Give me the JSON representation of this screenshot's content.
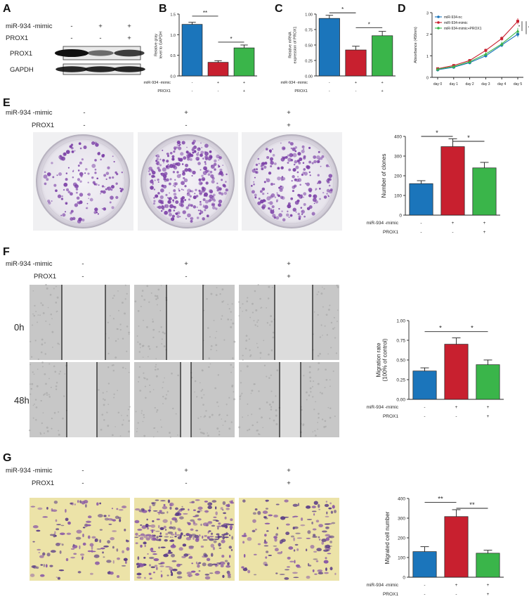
{
  "colors": {
    "blue": "#1b75bb",
    "red": "#c8202f",
    "green": "#3ab54a",
    "dish": "#7a3ea6",
    "bg": "#ffffff"
  },
  "panels": {
    "A": {
      "letter": "A",
      "cond_rows": [
        {
          "label": "miR-934 -mimic",
          "marks": [
            "-",
            "+",
            "+"
          ]
        },
        {
          "label": "PROX1",
          "marks": [
            "-",
            "-",
            "+"
          ]
        }
      ],
      "blots": [
        {
          "label": "PROX1",
          "intensity": [
            1.0,
            0.35,
            0.7
          ]
        },
        {
          "label": "GAPDH",
          "intensity": [
            0.85,
            0.85,
            0.85
          ]
        }
      ]
    },
    "B": {
      "letter": "B",
      "ylabel": "Relative gray\nlevel to GAPDH"
    },
    "C": {
      "letter": "C",
      "ylabel": "Relative mRNA\nexpression of PROX1"
    },
    "D": {
      "letter": "D",
      "ylabel": "Absorbance (450nm)"
    },
    "E": {
      "letter": "E",
      "cond_rows": [
        {
          "label": "miR-934 -mimic",
          "marks": [
            "-",
            "+",
            "+"
          ]
        },
        {
          "label": "PROX1",
          "marks": [
            "-",
            "-",
            "+"
          ]
        }
      ]
    },
    "F": {
      "letter": "F",
      "cond_rows": [
        {
          "label": "miR-934 -mimic",
          "marks": [
            "-",
            "+",
            "+"
          ]
        },
        {
          "label": "PROX1",
          "marks": [
            "-",
            "-",
            "+"
          ]
        }
      ],
      "row_labels": [
        "0h",
        "48h"
      ]
    },
    "G": {
      "letter": "G",
      "cond_rows": [
        {
          "label": "miR-934 -mimic",
          "marks": [
            "-",
            "+",
            "+"
          ]
        },
        {
          "label": "PROX1",
          "marks": [
            "-",
            "-",
            "+"
          ]
        }
      ]
    }
  },
  "chart_data": [
    {
      "id": "B",
      "type": "bar",
      "ylabel": "Relative gray level to GAPDH",
      "ylim": [
        0,
        1.5
      ],
      "yticks": [
        0.0,
        0.5,
        1.0,
        1.5
      ],
      "ytick_labels": [
        "0.0",
        "0.5",
        "1.0",
        "1.5"
      ],
      "values": [
        1.25,
        0.33,
        0.68
      ],
      "errors": [
        0.05,
        0.04,
        0.07
      ],
      "colors": [
        "#1b75bb",
        "#c8202f",
        "#3ab54a"
      ],
      "cond_rows": [
        {
          "label": "miR-934 -mimic",
          "marks": [
            "-",
            "+",
            "+"
          ]
        },
        {
          "label": "PROX1",
          "marks": [
            "-",
            "-",
            "+"
          ]
        }
      ],
      "sig": [
        {
          "from": 0,
          "to": 1,
          "label": "**",
          "y": 1.45
        },
        {
          "from": 1,
          "to": 2,
          "label": "*",
          "y": 0.82
        }
      ]
    },
    {
      "id": "C",
      "type": "bar",
      "ylabel": "Relative mRNA expression of PROX1",
      "ylim": [
        0,
        1.0
      ],
      "yticks": [
        0.0,
        0.25,
        0.5,
        0.75,
        1.0
      ],
      "ytick_labels": [
        "0.00",
        "0.25",
        "0.50",
        "0.75",
        "1.00"
      ],
      "values": [
        0.93,
        0.42,
        0.65
      ],
      "errors": [
        0.05,
        0.06,
        0.07
      ],
      "colors": [
        "#1b75bb",
        "#c8202f",
        "#3ab54a"
      ],
      "cond_rows": [
        {
          "label": "miR-934 -mimic",
          "marks": [
            "-",
            "+",
            "+"
          ]
        },
        {
          "label": "PROX1",
          "marks": [
            "-",
            "-",
            "+"
          ]
        }
      ],
      "sig": [
        {
          "from": 0,
          "to": 1,
          "label": "*",
          "y": 1.02
        },
        {
          "from": 1,
          "to": 2,
          "label": "*",
          "y": 0.78
        }
      ]
    },
    {
      "id": "D",
      "type": "line",
      "ylabel": "Absorbance (450nm)",
      "x": [
        "day 0",
        "day 1",
        "day 2",
        "day 3",
        "day 4",
        "day 5"
      ],
      "ylim": [
        0,
        3
      ],
      "yticks": [
        0,
        1,
        2,
        3
      ],
      "ytick_labels": [
        "0",
        "1",
        "2",
        "3"
      ],
      "legend_position": "top-left",
      "series": [
        {
          "name": "miR-934-nc",
          "color": "#1b75bb",
          "marker": "circle",
          "values": [
            0.35,
            0.47,
            0.68,
            1.0,
            1.5,
            2.0
          ]
        },
        {
          "name": "miR-934-mimic",
          "color": "#c8202f",
          "marker": "square",
          "values": [
            0.4,
            0.55,
            0.78,
            1.25,
            1.8,
            2.6
          ]
        },
        {
          "name": "miR-934-mimic+PROX1",
          "color": "#3ab54a",
          "marker": "triangle",
          "values": [
            0.38,
            0.5,
            0.72,
            1.08,
            1.55,
            2.15
          ]
        }
      ],
      "errors": [
        0.05,
        0.05,
        0.06,
        0.08,
        0.1,
        0.14
      ],
      "sig": [
        "*",
        "*"
      ]
    },
    {
      "id": "E",
      "type": "bar",
      "ylabel": "Number of clones",
      "ylim": [
        0,
        400
      ],
      "yticks": [
        0,
        100,
        200,
        300,
        400
      ],
      "ytick_labels": [
        "0",
        "100",
        "200",
        "300",
        "400"
      ],
      "values": [
        160,
        348,
        240
      ],
      "errors": [
        15,
        40,
        28
      ],
      "colors": [
        "#1b75bb",
        "#c8202f",
        "#3ab54a"
      ],
      "cond_rows": [
        {
          "label": "miR-934 -mimic",
          "marks": [
            "-",
            "+",
            "+"
          ]
        },
        {
          "label": "PROX1",
          "marks": [
            "-",
            "-",
            "+"
          ]
        }
      ],
      "sig": [
        {
          "from": 0,
          "to": 1,
          "label": "*",
          "y": 400
        },
        {
          "from": 1,
          "to": 2,
          "label": "*",
          "y": 375
        }
      ]
    },
    {
      "id": "F",
      "type": "bar",
      "ylabel": "Migration rate (100% of control)",
      "ylim": [
        0,
        1.0
      ],
      "yticks": [
        0.0,
        0.25,
        0.5,
        0.75,
        1.0
      ],
      "ytick_labels": [
        "0.00",
        "0.25",
        "0.50",
        "0.75",
        "1.00"
      ],
      "values": [
        0.36,
        0.7,
        0.44
      ],
      "errors": [
        0.04,
        0.08,
        0.06
      ],
      "colors": [
        "#1b75bb",
        "#c8202f",
        "#3ab54a"
      ],
      "cond_rows": [
        {
          "label": "miR-934 -mimic",
          "marks": [
            "-",
            "+",
            "+"
          ]
        },
        {
          "label": "PROX1",
          "marks": [
            "-",
            "-",
            "+"
          ]
        }
      ],
      "sig": [
        {
          "from": 0,
          "to": 1,
          "label": "*",
          "y": 0.86
        },
        {
          "from": 1,
          "to": 2,
          "label": "*",
          "y": 0.86
        }
      ]
    },
    {
      "id": "G",
      "type": "bar",
      "ylabel": "Migrated cell number",
      "ylim": [
        0,
        400
      ],
      "yticks": [
        0,
        100,
        200,
        300,
        400
      ],
      "ytick_labels": [
        "0",
        "100",
        "200",
        "300",
        "400"
      ],
      "values": [
        130,
        308,
        122
      ],
      "errors": [
        25,
        35,
        15
      ],
      "colors": [
        "#1b75bb",
        "#c8202f",
        "#3ab54a"
      ],
      "cond_rows": [
        {
          "label": "miR-934 -mimic",
          "marks": [
            "-",
            "+",
            "+"
          ]
        },
        {
          "label": "PROX1",
          "marks": [
            "-",
            "-",
            "+"
          ]
        }
      ],
      "sig": [
        {
          "from": 0,
          "to": 1,
          "label": "**",
          "y": 380
        },
        {
          "from": 1,
          "to": 2,
          "label": "**",
          "y": 350
        }
      ]
    }
  ]
}
